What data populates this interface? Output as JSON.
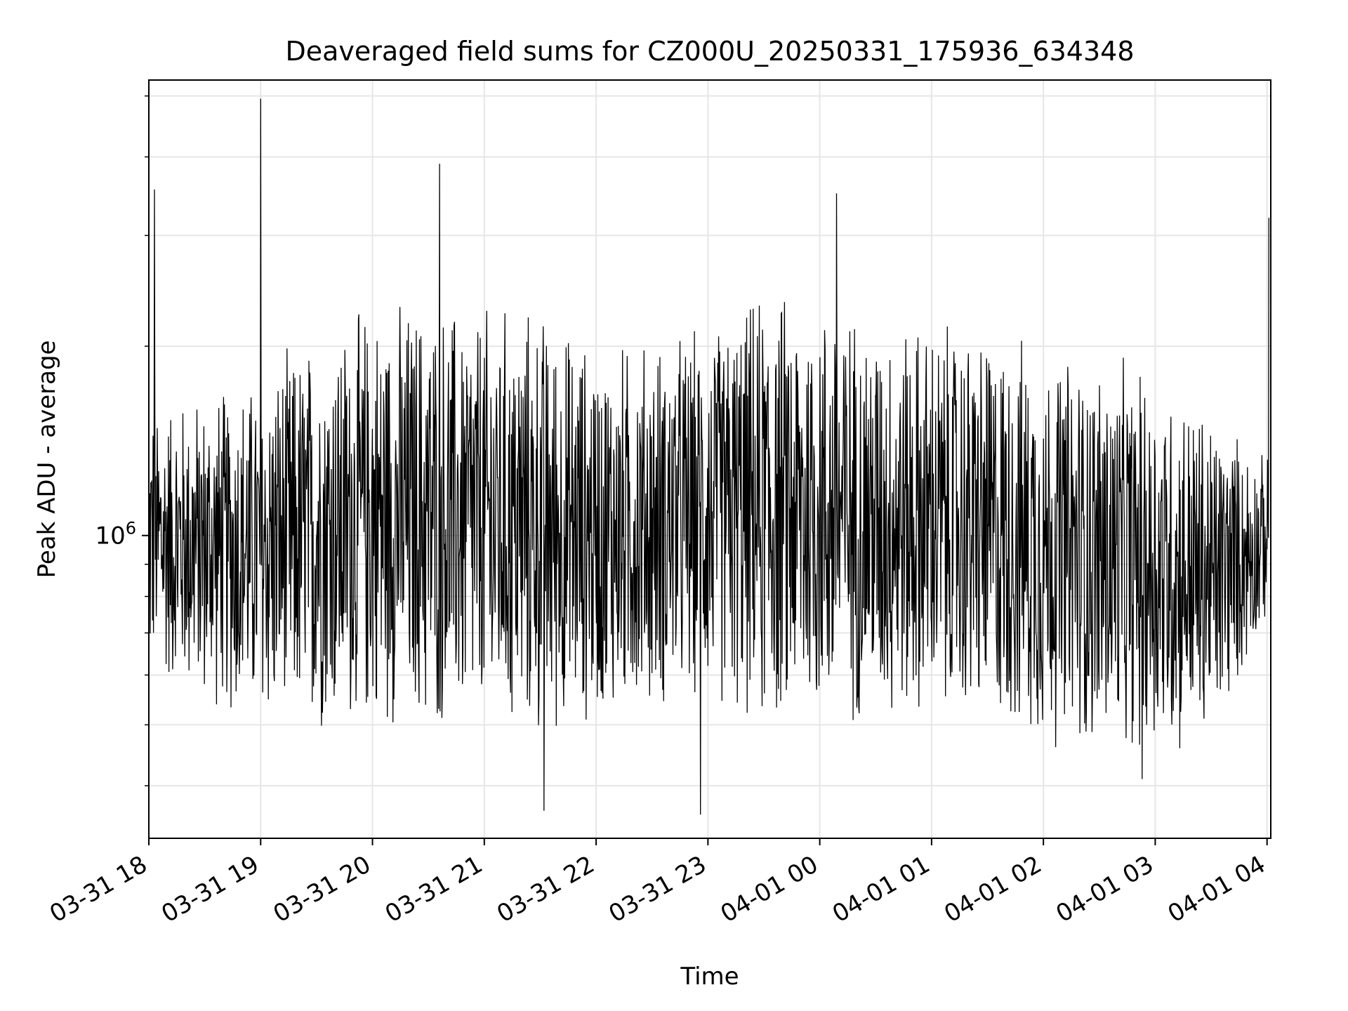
{
  "chart_data": {
    "type": "line",
    "title": "Deaveraged field sums for CZ000U_20250331_175936_634348",
    "xlabel": "Time",
    "ylabel": "Peak ADU - average",
    "y_scale": "log",
    "y_major_tick": {
      "value": 1000000,
      "mantissa": "10",
      "exponent": "6"
    },
    "y_minor_ticks": [
      400000,
      500000,
      600000,
      700000,
      800000,
      900000,
      2000000,
      3000000,
      4000000,
      5000000
    ],
    "ylim": [
      330000,
      5300000
    ],
    "xlim": [
      "2025-03-31T18:00",
      "2025-04-01T04:02"
    ],
    "x_ticks": [
      {
        "t": "2025-03-31T18:00",
        "label": "03-31 18"
      },
      {
        "t": "2025-03-31T19:00",
        "label": "03-31 19"
      },
      {
        "t": "2025-03-31T20:00",
        "label": "03-31 20"
      },
      {
        "t": "2025-03-31T21:00",
        "label": "03-31 21"
      },
      {
        "t": "2025-03-31T22:00",
        "label": "03-31 22"
      },
      {
        "t": "2025-03-31T23:00",
        "label": "03-31 23"
      },
      {
        "t": "2025-04-01T00:00",
        "label": "04-01 00"
      },
      {
        "t": "2025-04-01T01:00",
        "label": "04-01 01"
      },
      {
        "t": "2025-04-01T02:00",
        "label": "04-01 02"
      },
      {
        "t": "2025-04-01T03:00",
        "label": "04-01 03"
      },
      {
        "t": "2025-04-01T04:00",
        "label": "04-01 04"
      }
    ],
    "grid": true,
    "series": [
      {
        "color": "#000000",
        "envelope": {
          "t": [
            "2025-03-31T18:00",
            "2025-03-31T18:30",
            "2025-03-31T19:00",
            "2025-03-31T19:30",
            "2025-03-31T20:00",
            "2025-03-31T20:30",
            "2025-03-31T21:00",
            "2025-03-31T21:30",
            "2025-03-31T22:00",
            "2025-03-31T22:30",
            "2025-03-31T23:00",
            "2025-03-31T23:30",
            "2025-04-01T00:00",
            "2025-04-01T00:30",
            "2025-04-01T01:00",
            "2025-04-01T01:30",
            "2025-04-01T02:00",
            "2025-04-01T02:30",
            "2025-04-01T03:00",
            "2025-04-01T03:30",
            "2025-04-01T04:00"
          ],
          "low": [
            570000,
            520000,
            470000,
            460000,
            470000,
            460000,
            450000,
            450000,
            480000,
            500000,
            520000,
            460000,
            470000,
            480000,
            480000,
            460000,
            440000,
            430000,
            420000,
            440000,
            720000
          ],
          "high": [
            1700000,
            1750000,
            1900000,
            2200000,
            2450000,
            2500000,
            2450000,
            2400000,
            2100000,
            2150000,
            2250000,
            2600000,
            2550000,
            2350000,
            2300000,
            2250000,
            2100000,
            2000000,
            1900000,
            1650000,
            1350000
          ]
        },
        "extremes": [
          {
            "t": "2025-03-31T18:03",
            "y": 3550000
          },
          {
            "t": "2025-03-31T19:00",
            "y": 4950000
          },
          {
            "t": "2025-03-31T20:36",
            "y": 3900000
          },
          {
            "t": "2025-03-31T21:32",
            "y": 365000
          },
          {
            "t": "2025-03-31T22:56",
            "y": 360000
          },
          {
            "t": "2025-04-01T00:09",
            "y": 3500000
          },
          {
            "t": "2025-04-01T02:53",
            "y": 410000
          },
          {
            "t": "2025-04-01T04:01",
            "y": 3200000
          }
        ]
      }
    ]
  }
}
